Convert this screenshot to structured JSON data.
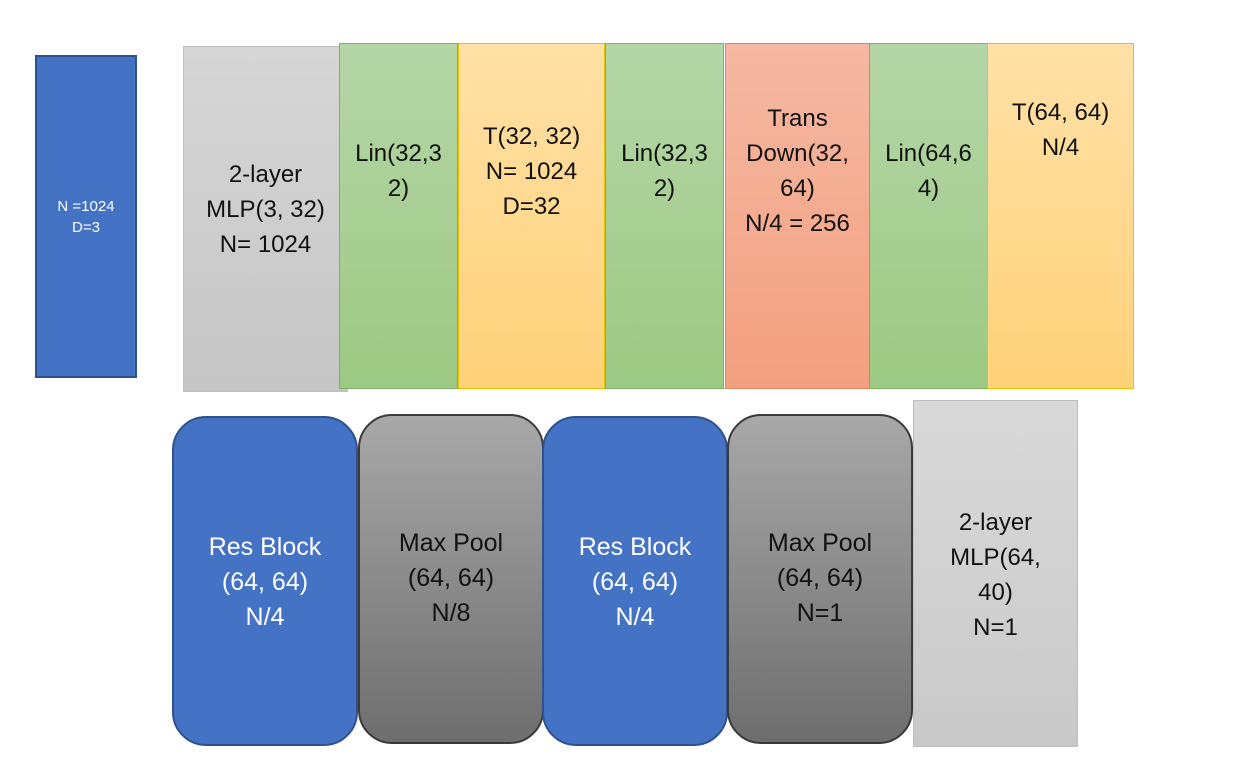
{
  "input": {
    "lines": [
      "N =1024",
      "D=3"
    ]
  },
  "top_row": [
    {
      "lines": [
        "2-layer",
        "MLP(3, 32)",
        "N= 1024"
      ]
    },
    {
      "lines": [
        "Lin(32,3",
        "2)"
      ]
    },
    {
      "lines": [
        "T(32, 32)",
        "N= 1024",
        "D=32"
      ]
    },
    {
      "lines": [
        "Lin(32,3",
        "2)"
      ]
    },
    {
      "lines": [
        "Trans",
        "Down(32,",
        "64)",
        "N/4 = 256"
      ]
    },
    {
      "lines": [
        "Lin(64,6",
        "4)"
      ]
    },
    {
      "lines": [
        "T(64, 64)",
        "N/4"
      ]
    }
  ],
  "bottom_row": [
    {
      "lines": [
        "Res Block",
        "(64, 64)",
        "N/4"
      ]
    },
    {
      "lines": [
        "Max Pool",
        "(64, 64)",
        "N/8"
      ]
    },
    {
      "lines": [
        "Res Block",
        "(64, 64)",
        "N/4"
      ]
    },
    {
      "lines": [
        "Max Pool",
        "(64, 64)",
        "N=1"
      ]
    },
    {
      "lines": [
        "2-layer",
        "MLP(64,",
        "40)",
        "N=1"
      ]
    }
  ],
  "colors": {
    "blue": "#4472c4",
    "gray": "#c9c9c9",
    "green": "#a9d18e",
    "yellow": "#ffd966",
    "orange": "#f4b183",
    "dark_gray": "#7f7f7f"
  }
}
